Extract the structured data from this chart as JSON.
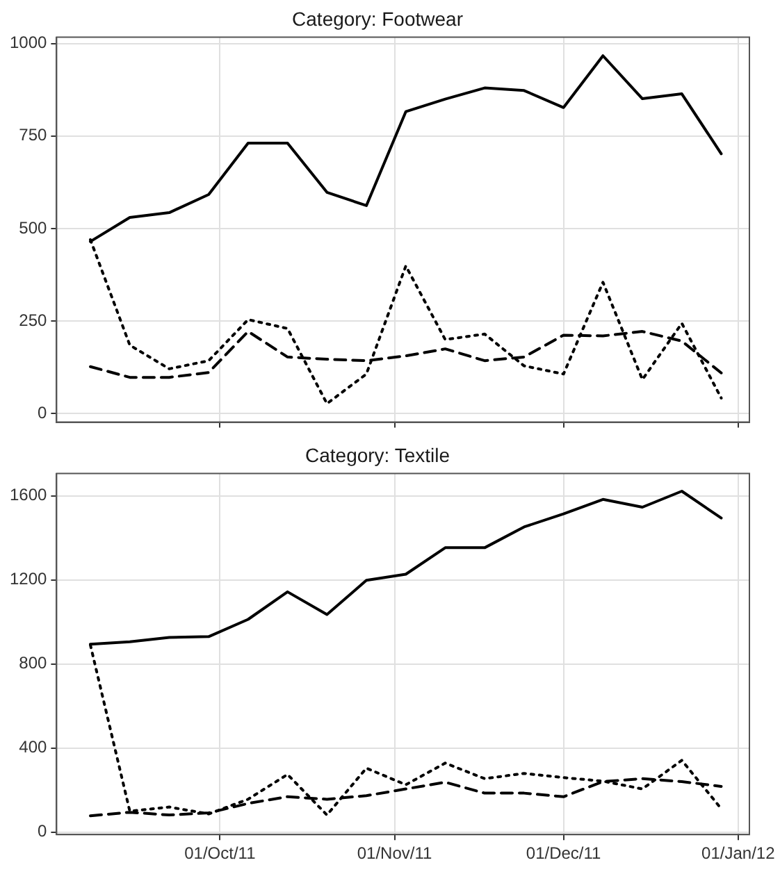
{
  "chart_data": [
    {
      "type": "line",
      "title": "Category: Footwear",
      "x": [
        "2011-09-08",
        "2011-09-15",
        "2011-09-22",
        "2011-09-29",
        "2011-10-06",
        "2011-10-13",
        "2011-10-20",
        "2011-10-27",
        "2011-11-03",
        "2011-11-10",
        "2011-11-17",
        "2011-11-24",
        "2011-12-01",
        "2011-12-08",
        "2011-12-15",
        "2011-12-22",
        "2011-12-29"
      ],
      "series": [
        {
          "color": "#000000",
          "line_style": "solid",
          "values": [
            465,
            530,
            543,
            592,
            731,
            731,
            598,
            562,
            816,
            850,
            880,
            873,
            827,
            967,
            851,
            864,
            702
          ]
        },
        {
          "color": "#000000",
          "line_style": "dotted",
          "values": [
            470,
            185,
            121,
            143,
            254,
            230,
            27,
            107,
            399,
            200,
            215,
            129,
            107,
            355,
            92,
            244,
            42
          ]
        },
        {
          "color": "#000000",
          "line_style": "dashed",
          "values": [
            127,
            98,
            98,
            111,
            222,
            153,
            147,
            143,
            156,
            175,
            143,
            153,
            212,
            210,
            222,
            196,
            110
          ]
        }
      ],
      "xlim": [
        "2011-09-02",
        "2012-01-03"
      ],
      "xticks": [
        {
          "value": "2011-10-01",
          "label": null
        },
        {
          "value": "2011-11-01",
          "label": null
        },
        {
          "value": "2011-12-01",
          "label": null
        },
        {
          "value": "2012-01-01",
          "label": null
        }
      ],
      "ylim": [
        -23,
        1017
      ],
      "yticks": [
        0,
        250,
        500,
        750,
        1000
      ],
      "tick_labels": "y",
      "grid": true,
      "legend": false,
      "marker": "none"
    },
    {
      "type": "line",
      "title": "Category: Textile",
      "x": [
        "2011-09-08",
        "2011-09-15",
        "2011-09-22",
        "2011-09-29",
        "2011-10-06",
        "2011-10-13",
        "2011-10-20",
        "2011-10-27",
        "2011-11-03",
        "2011-11-10",
        "2011-11-17",
        "2011-11-24",
        "2011-12-01",
        "2011-12-08",
        "2011-12-15",
        "2011-12-22",
        "2011-12-29"
      ],
      "series": [
        {
          "color": "#000000",
          "line_style": "solid",
          "values": [
            894,
            905,
            926,
            930,
            1012,
            1143,
            1035,
            1198,
            1227,
            1353,
            1353,
            1452,
            1514,
            1583,
            1546,
            1622,
            1494
          ]
        },
        {
          "color": "#000000",
          "line_style": "dotted",
          "values": [
            890,
            99,
            119,
            86,
            156,
            274,
            81,
            304,
            225,
            328,
            254,
            279,
            259,
            242,
            205,
            341,
            111
          ]
        },
        {
          "color": "#000000",
          "line_style": "dashed",
          "values": [
            77,
            94,
            81,
            91,
            136,
            168,
            156,
            173,
            205,
            237,
            185,
            185,
            168,
            240,
            254,
            240,
            217
          ]
        }
      ],
      "xlim": [
        "2011-09-02",
        "2012-01-03"
      ],
      "xticks": [
        {
          "value": "2011-10-01",
          "label": "01/Oct/11"
        },
        {
          "value": "2011-11-01",
          "label": "01/Nov/11"
        },
        {
          "value": "2011-12-01",
          "label": "01/Dec/11"
        },
        {
          "value": "2012-01-01",
          "label": "01/Jan/12"
        }
      ],
      "ylim": [
        -12,
        1706
      ],
      "yticks": [
        0,
        400,
        800,
        1200,
        1600
      ],
      "grid": true,
      "legend": false,
      "marker": "none"
    }
  ]
}
